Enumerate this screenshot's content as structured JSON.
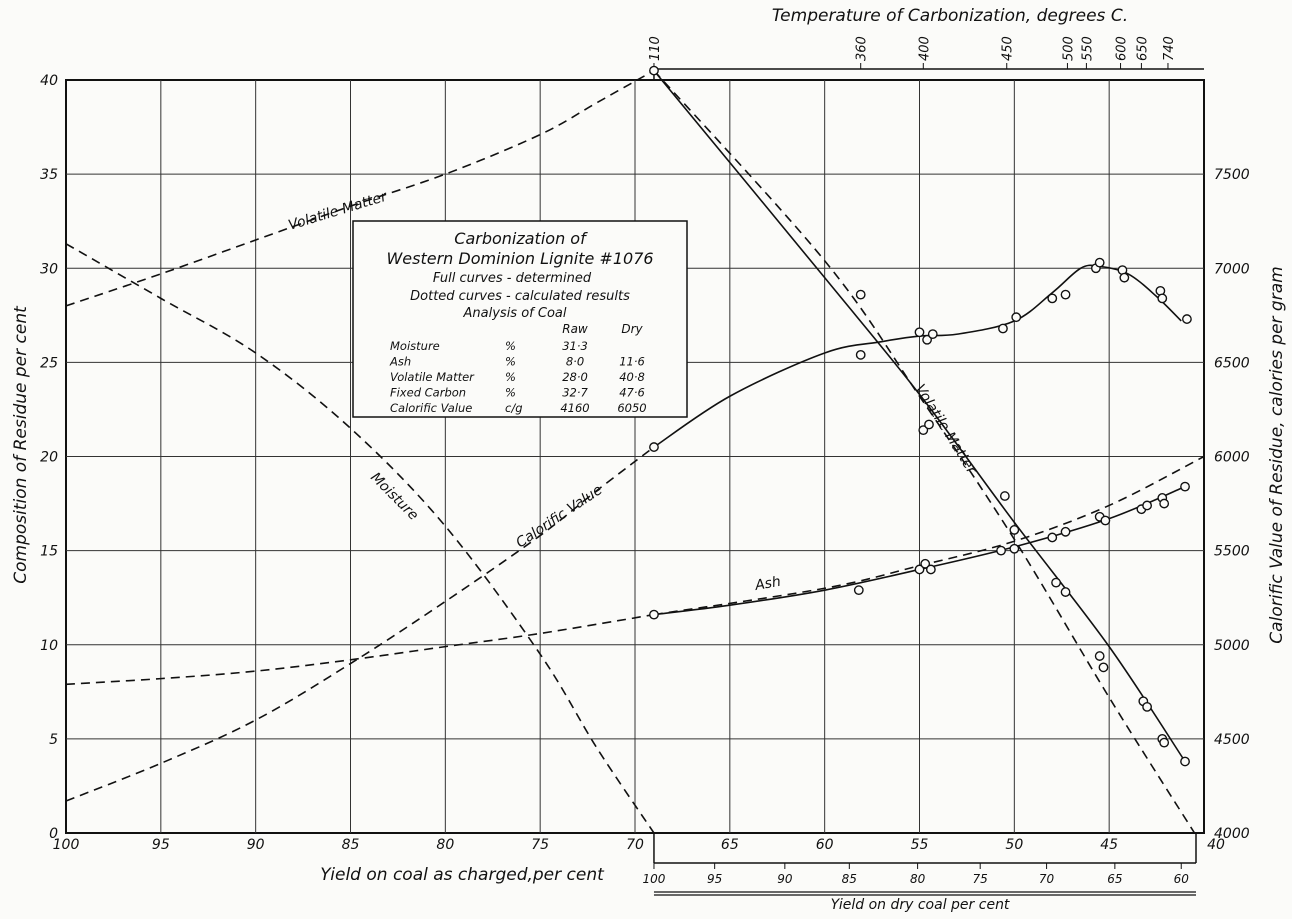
{
  "chart_data": {
    "type": "line",
    "title": "Temperature of Carbonization, degrees C.",
    "xlabel": "Yield on coal as charged,per cent",
    "x2label": "Yield on dry coal per cent",
    "ylabel": "Composition of Residue per cent",
    "y2label": "Calorific Value of Residue, calories per gram",
    "xlim": [
      100,
      40
    ],
    "ylim": [
      0,
      40
    ],
    "y2lim": [
      4000,
      8000
    ],
    "x_ticks": [
      100,
      95,
      90,
      85,
      80,
      75,
      70,
      65,
      60,
      55,
      50,
      45,
      40
    ],
    "y_ticks": [
      0,
      5,
      10,
      15,
      20,
      25,
      30,
      35,
      40
    ],
    "y2_ticks": [
      4000,
      4500,
      5000,
      5500,
      6000,
      6500,
      7000,
      7500
    ],
    "dry_yield_ticks": [
      {
        "label": "100",
        "x": 69
      },
      {
        "label": "95",
        "x": 65.8
      },
      {
        "label": "90",
        "x": 62.1
      },
      {
        "label": "85",
        "x": 58.7
      },
      {
        "label": "80",
        "x": 55.1
      },
      {
        "label": "75",
        "x": 51.8
      },
      {
        "label": "70",
        "x": 48.3
      },
      {
        "label": "65",
        "x": 44.7
      },
      {
        "label": "60",
        "x": 41.2
      }
    ],
    "temperature_ticks": [
      {
        "label": "110",
        "x": 69
      },
      {
        "label": "360",
        "x": 58.1
      },
      {
        "label": "400",
        "x": 54.8
      },
      {
        "label": "450",
        "x": 50.4
      },
      {
        "label": "500",
        "x": 47.2
      },
      {
        "label": "550",
        "x": 46.2
      },
      {
        "label": "600",
        "x": 44.4
      },
      {
        "label": "650",
        "x": 43.3
      },
      {
        "label": "740",
        "x": 41.9
      }
    ],
    "annotations": {
      "volatile_matter_dashed": "Volatile Matter",
      "volatile_matter_solid": "Volatile Matter",
      "calorific_value": "Calorific Value",
      "moisture": "Moisture",
      "ash": "Ash"
    },
    "legend_box": {
      "title_line1": "Carbonization of",
      "title_line2": "Western Dominion Lignite #1076",
      "line3": "Full curves - determined",
      "line4": "Dotted curves - calculated results",
      "analysis_title": "Analysis of Coal",
      "col_raw": "Raw",
      "col_dry": "Dry",
      "rows": [
        {
          "name": "Moisture",
          "unit": "%",
          "raw": "31·3",
          "dry": ""
        },
        {
          "name": "Ash",
          "unit": "%",
          "raw": "8·0",
          "dry": "11·6"
        },
        {
          "name": "Volatile Matter",
          "unit": "%",
          "raw": "28·0",
          "dry": "40·8"
        },
        {
          "name": "Fixed Carbon",
          "unit": "%",
          "raw": "32·7",
          "dry": "47·6"
        },
        {
          "name": "Calorific Value",
          "unit": "c/g",
          "raw": "4160",
          "dry": "6050"
        }
      ]
    },
    "series": [
      {
        "style": "dashed",
        "axis": "left",
        "x": [
          100,
          95,
          90,
          85,
          80,
          75,
          72,
          69
        ],
        "y": [
          28,
          29.7,
          31.5,
          33.3,
          35,
          37.1,
          38.8,
          40.5
        ]
      },
      {
        "style": "dashed",
        "axis": "left",
        "x": [
          100,
          95,
          90,
          85,
          80,
          75,
          69
        ],
        "y": [
          7.9,
          8.2,
          8.6,
          9.2,
          9.9,
          10.6,
          11.6
        ]
      },
      {
        "style": "dashed",
        "axis": "right",
        "x": [
          100,
          95,
          90,
          85,
          80,
          75,
          72,
          69
        ],
        "y": [
          4170,
          4370,
          4600,
          4900,
          5230,
          5580,
          5820,
          6050
        ]
      },
      {
        "style": "dashed",
        "axis": "left",
        "x": [
          100,
          95,
          90,
          85,
          80,
          75,
          72,
          69
        ],
        "y": [
          31.3,
          28.4,
          25.5,
          21.5,
          16.3,
          9.5,
          4.5,
          0
        ]
      },
      {
        "style": "dashed",
        "axis": "left",
        "x": [
          69,
          60,
          55,
          50,
          45,
          40.5
        ],
        "y": [
          40.5,
          30.4,
          23.2,
          15.6,
          7.2,
          0
        ]
      },
      {
        "style": "dashed",
        "axis": "left",
        "x": [
          69,
          60,
          55,
          50,
          45,
          40
        ],
        "y": [
          11.6,
          13,
          14.2,
          15.5,
          17.4,
          20
        ]
      },
      {
        "style": "solid",
        "axis": "left",
        "x": [
          69,
          60,
          55,
          50,
          45,
          41
        ],
        "y": [
          40.5,
          29.5,
          23.3,
          16.5,
          9.9,
          3.8
        ]
      },
      {
        "style": "solid",
        "axis": "left",
        "x": [
          69,
          65,
          60,
          55,
          50,
          45,
          41
        ],
        "y": [
          11.6,
          12.1,
          12.9,
          14,
          15.2,
          16.7,
          18.4
        ]
      },
      {
        "style": "solid",
        "axis": "right",
        "x": [
          69,
          65,
          60,
          57,
          55,
          53,
          50,
          48,
          46.5,
          45.5,
          44,
          42.5,
          41.2
        ],
        "y": [
          6050,
          6320,
          6550,
          6610,
          6640,
          6650,
          6720,
          6870,
          7000,
          7010,
          6970,
          6850,
          6720
        ]
      }
    ],
    "points": [
      {
        "axis": "left",
        "x": 69,
        "y": 40.5
      },
      {
        "axis": "left",
        "x": 58.1,
        "y": 28.6
      },
      {
        "axis": "left",
        "x": 54.8,
        "y": 21.4
      },
      {
        "axis": "left",
        "x": 54.5,
        "y": 21.7
      },
      {
        "axis": "left",
        "x": 50.5,
        "y": 17.9
      },
      {
        "axis": "left",
        "x": 50,
        "y": 16.1
      },
      {
        "axis": "left",
        "x": 47.8,
        "y": 13.3
      },
      {
        "axis": "left",
        "x": 47.3,
        "y": 12.8
      },
      {
        "axis": "left",
        "x": 45.5,
        "y": 9.4
      },
      {
        "axis": "left",
        "x": 45.3,
        "y": 8.8
      },
      {
        "axis": "left",
        "x": 43.2,
        "y": 7
      },
      {
        "axis": "left",
        "x": 43,
        "y": 6.7
      },
      {
        "axis": "left",
        "x": 42.2,
        "y": 5
      },
      {
        "axis": "left",
        "x": 42.1,
        "y": 4.8
      },
      {
        "axis": "left",
        "x": 41,
        "y": 3.8
      },
      {
        "axis": "left",
        "x": 69,
        "y": 11.6
      },
      {
        "axis": "left",
        "x": 58.2,
        "y": 12.9
      },
      {
        "axis": "left",
        "x": 55,
        "y": 14
      },
      {
        "axis": "left",
        "x": 54.7,
        "y": 14.3
      },
      {
        "axis": "left",
        "x": 54.4,
        "y": 14
      },
      {
        "axis": "left",
        "x": 50.7,
        "y": 15
      },
      {
        "axis": "left",
        "x": 50,
        "y": 15.1
      },
      {
        "axis": "left",
        "x": 48,
        "y": 15.7
      },
      {
        "axis": "left",
        "x": 47.3,
        "y": 16
      },
      {
        "axis": "left",
        "x": 45.5,
        "y": 16.8
      },
      {
        "axis": "left",
        "x": 45.2,
        "y": 16.6
      },
      {
        "axis": "left",
        "x": 43.3,
        "y": 17.2
      },
      {
        "axis": "left",
        "x": 43,
        "y": 17.4
      },
      {
        "axis": "left",
        "x": 42.2,
        "y": 17.8
      },
      {
        "axis": "left",
        "x": 42.1,
        "y": 17.5
      },
      {
        "axis": "left",
        "x": 41,
        "y": 18.4
      },
      {
        "axis": "right",
        "x": 69,
        "y": 6050
      },
      {
        "axis": "right",
        "x": 58.1,
        "y": 6540
      },
      {
        "axis": "right",
        "x": 55,
        "y": 6660
      },
      {
        "axis": "right",
        "x": 54.6,
        "y": 6620
      },
      {
        "axis": "right",
        "x": 54.3,
        "y": 6650
      },
      {
        "axis": "right",
        "x": 50.6,
        "y": 6680
      },
      {
        "axis": "right",
        "x": 49.9,
        "y": 6740
      },
      {
        "axis": "right",
        "x": 48,
        "y": 6840
      },
      {
        "axis": "right",
        "x": 47.3,
        "y": 6860
      },
      {
        "axis": "right",
        "x": 45.7,
        "y": 7000
      },
      {
        "axis": "right",
        "x": 45.5,
        "y": 7030
      },
      {
        "axis": "right",
        "x": 44.3,
        "y": 6990
      },
      {
        "axis": "right",
        "x": 44.2,
        "y": 6950
      },
      {
        "axis": "right",
        "x": 42.3,
        "y": 6880
      },
      {
        "axis": "right",
        "x": 42.2,
        "y": 6840
      },
      {
        "axis": "right",
        "x": 40.9,
        "y": 6730
      }
    ]
  }
}
